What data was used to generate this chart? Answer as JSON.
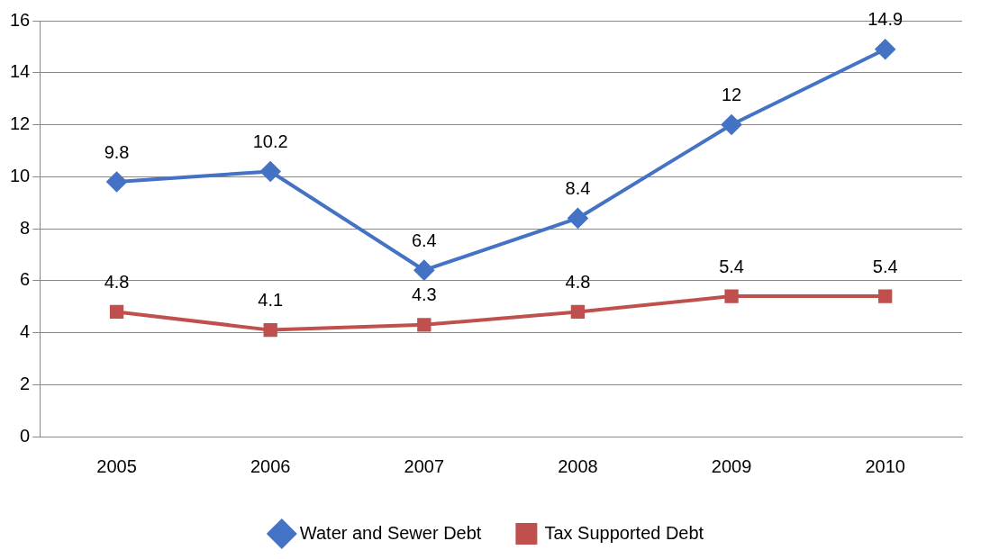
{
  "chart_data": {
    "type": "line",
    "categories": [
      "2005",
      "2006",
      "2007",
      "2008",
      "2009",
      "2010"
    ],
    "series": [
      {
        "name": "Water and Sewer Debt",
        "color": "#4472c4",
        "marker": "diamond",
        "values": [
          9.8,
          10.2,
          6.4,
          8.4,
          12,
          14.9
        ]
      },
      {
        "name": "Tax Supported Debt",
        "color": "#c0504d",
        "marker": "square",
        "values": [
          4.8,
          4.1,
          4.3,
          4.8,
          5.4,
          5.4
        ]
      }
    ],
    "ylim": [
      0,
      16
    ],
    "yticks": [
      0,
      2,
      4,
      6,
      8,
      10,
      12,
      14,
      16
    ],
    "grid": "y",
    "legend": "bottom",
    "data_labels": true,
    "line_style": "solid"
  }
}
